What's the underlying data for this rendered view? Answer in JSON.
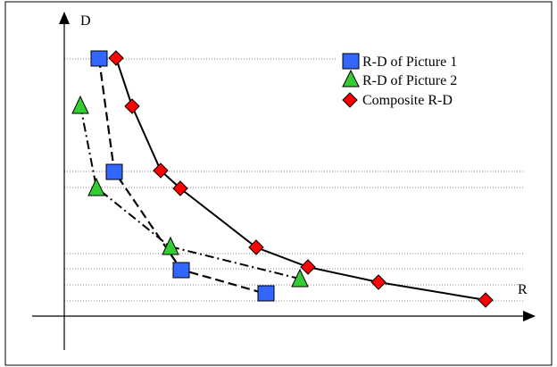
{
  "diagram": {
    "axis_labels": {
      "y": "D",
      "x": "R"
    },
    "legend": [
      {
        "label": "R-D of Picture 1",
        "marker": "square",
        "color": "#3366ff"
      },
      {
        "label": "R-D of Picture 2",
        "marker": "triangle",
        "color": "#33cc33"
      },
      {
        "label": "Composite R-D",
        "marker": "diamond",
        "color": "#ff0000"
      }
    ],
    "colors": {
      "picture1": "#3366ff",
      "picture2": "#33cc33",
      "composite": "#ff0000",
      "lines": "#000000",
      "guides": "#808080"
    }
  }
}
